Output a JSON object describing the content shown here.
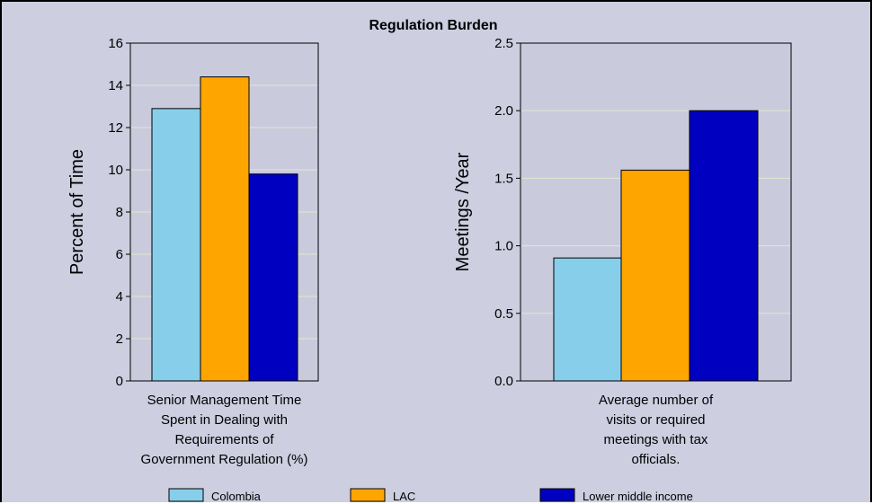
{
  "chart_title": "Regulation Burden",
  "legend": [
    {
      "name": "Colombia",
      "color": "#87ceeb"
    },
    {
      "name": "LAC",
      "color": "#ffa500"
    },
    {
      "name": "Lower middle income",
      "color": "#0000c0"
    }
  ],
  "chart_data": [
    {
      "type": "bar",
      "categories": [
        "Senior Management Time Spent in Dealing with Requirements of Government Regulation (%)"
      ],
      "category_lines": [
        "Senior Management Time",
        "Spent in Dealing with",
        "Requirements of",
        "Government Regulation (%)"
      ],
      "series": [
        {
          "name": "Colombia",
          "values": [
            12.9
          ]
        },
        {
          "name": "LAC",
          "values": [
            14.4
          ]
        },
        {
          "name": "Lower middle income",
          "values": [
            9.8
          ]
        }
      ],
      "ylabel": "Percent of Time",
      "ylim": [
        0,
        16
      ],
      "yticks": [
        "0",
        "2",
        "4",
        "6",
        "8",
        "10",
        "12",
        "14",
        "16"
      ],
      "grid": true
    },
    {
      "type": "bar",
      "categories": [
        "Average number of visits or required meetings with tax officials."
      ],
      "category_lines": [
        "Average number of",
        "visits or required",
        "meetings with tax",
        "officials."
      ],
      "series": [
        {
          "name": "Colombia",
          "values": [
            0.91
          ]
        },
        {
          "name": "LAC",
          "values": [
            1.56
          ]
        },
        {
          "name": "Lower middle income",
          "values": [
            2.0
          ]
        }
      ],
      "ylabel": "Meetings /Year",
      "ylim": [
        0,
        2.5
      ],
      "yticks": [
        "0.0",
        "0.5",
        "1.0",
        "1.5",
        "2.0",
        "2.5"
      ],
      "grid": true
    }
  ]
}
